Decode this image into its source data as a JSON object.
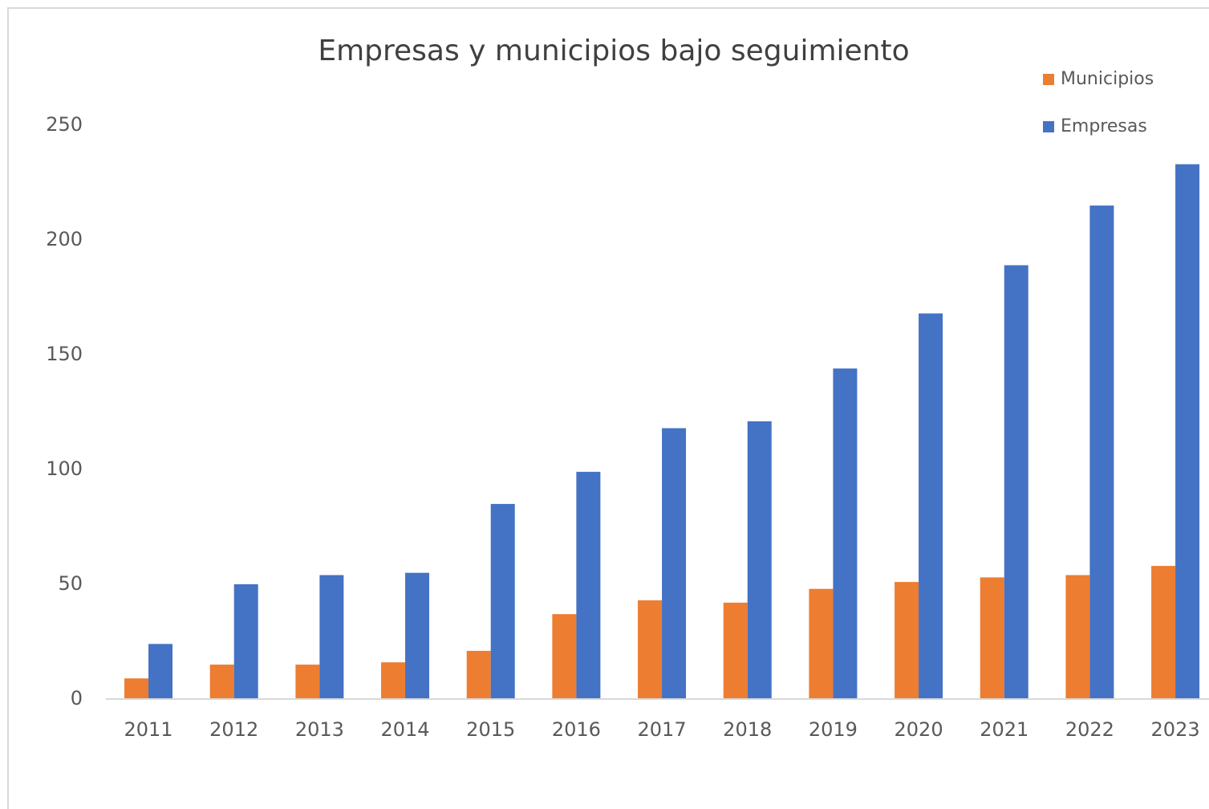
{
  "chart_data": {
    "type": "bar",
    "title": "Empresas y municipios bajo seguimiento",
    "categories": [
      "2011",
      "2012",
      "2013",
      "2014",
      "2015",
      "2016",
      "2017",
      "2018",
      "2019",
      "2020",
      "2021",
      "2022",
      "2023"
    ],
    "series": [
      {
        "name": "Municipios",
        "color": "#ed7d31",
        "values": [
          9,
          15,
          15,
          16,
          21,
          37,
          43,
          42,
          48,
          51,
          53,
          54,
          58
        ]
      },
      {
        "name": "Empresas",
        "color": "#4472c4",
        "values": [
          24,
          50,
          54,
          55,
          85,
          99,
          118,
          121,
          144,
          168,
          189,
          215,
          233
        ]
      }
    ],
    "ylim": [
      0,
      250
    ],
    "yticks": [
      0,
      50,
      100,
      150,
      200,
      250
    ],
    "grid": false,
    "legend": "top-right"
  }
}
